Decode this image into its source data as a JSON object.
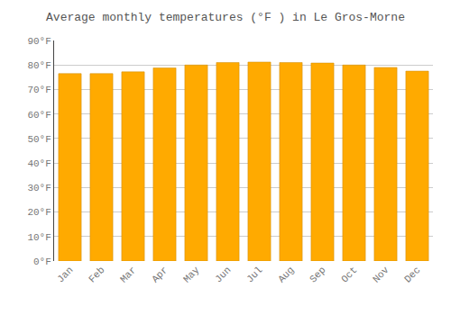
{
  "chart_data": {
    "type": "bar",
    "title": "Average monthly temperatures (°F ) in Le Gros-Morne",
    "categories": [
      "Jan",
      "Feb",
      "Mar",
      "Apr",
      "May",
      "Jun",
      "Jul",
      "Aug",
      "Sep",
      "Oct",
      "Nov",
      "Dec"
    ],
    "values": [
      76.5,
      76.5,
      77.2,
      78.8,
      80.0,
      81.0,
      81.2,
      81.0,
      80.8,
      80.0,
      79.0,
      77.5
    ],
    "color": "#FFAA00",
    "ylim": [
      0,
      90
    ],
    "yticks": [
      {
        "value": 0,
        "label": "0°F"
      },
      {
        "value": 10,
        "label": "10°F"
      },
      {
        "value": 20,
        "label": "20°F"
      },
      {
        "value": 30,
        "label": "30°F"
      },
      {
        "value": 40,
        "label": "40°F"
      },
      {
        "value": 50,
        "label": "50°F"
      },
      {
        "value": 60,
        "label": "60°F"
      },
      {
        "value": 70,
        "label": "70°F"
      },
      {
        "value": 80,
        "label": "80°F"
      },
      {
        "value": 90,
        "label": "90°F"
      }
    ],
    "grid": true
  }
}
